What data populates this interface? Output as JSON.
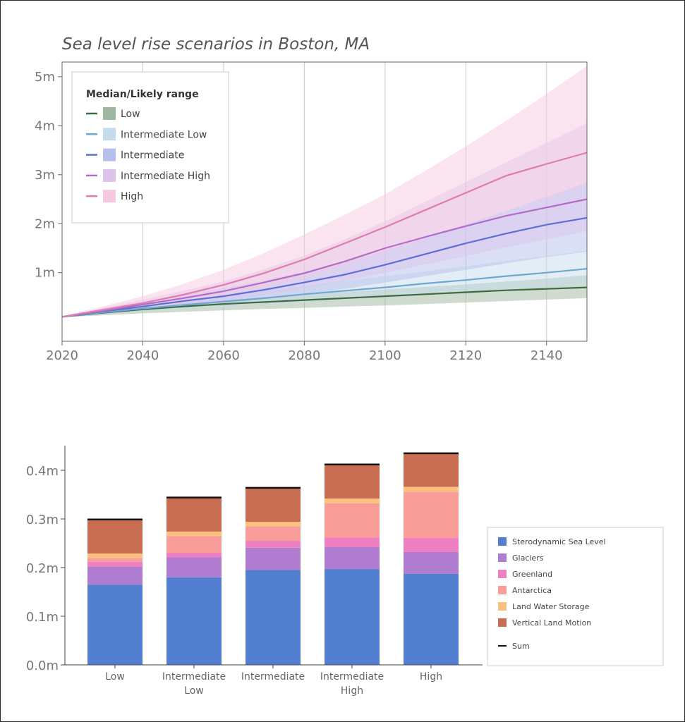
{
  "chart_data": [
    {
      "type": "line",
      "title": "Sea level rise scenarios in Boston, MA",
      "xlabel": "",
      "ylabel": "",
      "xlim": [
        2020,
        2150
      ],
      "ylim": [
        -0.4,
        5.3
      ],
      "x_ticks": [
        2020,
        2040,
        2060,
        2080,
        2100,
        2120,
        2140
      ],
      "y_ticks": [
        1,
        2,
        3,
        4,
        5
      ],
      "y_tick_labels": [
        "1m",
        "2m",
        "3m",
        "4m",
        "5m"
      ],
      "legend": {
        "title": "Median/Likely range",
        "placement": "top-left",
        "entries": [
          "Low",
          "Intermediate Low",
          "Intermediate",
          "Intermediate High",
          "High"
        ]
      },
      "x": [
        2020,
        2030,
        2040,
        2050,
        2060,
        2070,
        2080,
        2090,
        2100,
        2110,
        2120,
        2130,
        2140,
        2150
      ],
      "series": [
        {
          "name": "Low",
          "line_color": "#3d6b3f",
          "band_color": "#9fb79f",
          "median": [
            0.1,
            0.18,
            0.25,
            0.31,
            0.36,
            0.4,
            0.44,
            0.48,
            0.52,
            0.56,
            0.6,
            0.64,
            0.67,
            0.7
          ],
          "lower": [
            0.09,
            0.13,
            0.17,
            0.2,
            0.23,
            0.26,
            0.28,
            0.31,
            0.33,
            0.36,
            0.39,
            0.42,
            0.45,
            0.48
          ],
          "upper": [
            0.11,
            0.21,
            0.3,
            0.38,
            0.44,
            0.5,
            0.55,
            0.61,
            0.66,
            0.71,
            0.76,
            0.82,
            0.88,
            0.95
          ]
        },
        {
          "name": "Intermediate Low",
          "line_color": "#6fa8cf",
          "band_color": "#c5dcec",
          "median": [
            0.1,
            0.19,
            0.27,
            0.34,
            0.41,
            0.48,
            0.56,
            0.63,
            0.7,
            0.78,
            0.85,
            0.93,
            1.0,
            1.08
          ],
          "lower": [
            0.09,
            0.15,
            0.2,
            0.25,
            0.3,
            0.35,
            0.4,
            0.45,
            0.5,
            0.56,
            0.61,
            0.66,
            0.71,
            0.76
          ],
          "upper": [
            0.11,
            0.22,
            0.33,
            0.43,
            0.53,
            0.63,
            0.73,
            0.83,
            0.93,
            1.03,
            1.13,
            1.24,
            1.34,
            1.45
          ]
        },
        {
          "name": "Intermediate",
          "line_color": "#5b6fd6",
          "band_color": "#b6c0ec",
          "median": [
            0.1,
            0.21,
            0.31,
            0.42,
            0.52,
            0.65,
            0.8,
            0.96,
            1.16,
            1.38,
            1.6,
            1.8,
            1.98,
            2.12
          ],
          "lower": [
            0.09,
            0.16,
            0.23,
            0.3,
            0.37,
            0.46,
            0.56,
            0.67,
            0.8,
            0.93,
            1.06,
            1.19,
            1.32,
            1.43
          ],
          "upper": [
            0.11,
            0.26,
            0.4,
            0.54,
            0.68,
            0.84,
            1.02,
            1.22,
            1.46,
            1.72,
            1.99,
            2.26,
            2.55,
            2.84
          ]
        },
        {
          "name": "Intermediate High",
          "line_color": "#b06cc8",
          "band_color": "#dcc3ec",
          "median": [
            0.1,
            0.22,
            0.35,
            0.48,
            0.62,
            0.8,
            0.99,
            1.23,
            1.5,
            1.73,
            1.95,
            2.16,
            2.33,
            2.5
          ],
          "lower": [
            0.09,
            0.17,
            0.25,
            0.34,
            0.43,
            0.55,
            0.68,
            0.83,
            1.0,
            1.17,
            1.34,
            1.52,
            1.68,
            1.85
          ],
          "upper": [
            0.11,
            0.28,
            0.45,
            0.63,
            0.82,
            1.07,
            1.35,
            1.68,
            2.05,
            2.45,
            2.85,
            3.25,
            3.65,
            4.05
          ]
        },
        {
          "name": "High",
          "line_color": "#e07ab2",
          "band_color": "#f6c9e0",
          "median": [
            0.1,
            0.24,
            0.38,
            0.55,
            0.75,
            0.99,
            1.27,
            1.6,
            1.93,
            2.28,
            2.63,
            2.98,
            3.22,
            3.45
          ],
          "lower": [
            0.09,
            0.18,
            0.27,
            0.38,
            0.52,
            0.7,
            0.91,
            1.16,
            1.42,
            1.7,
            1.98,
            2.26,
            2.53,
            2.8
          ],
          "upper": [
            0.11,
            0.31,
            0.52,
            0.77,
            1.06,
            1.4,
            1.78,
            2.18,
            2.6,
            3.08,
            3.58,
            4.1,
            4.65,
            5.22
          ]
        }
      ]
    },
    {
      "type": "bar",
      "stacked": true,
      "title": "",
      "xlabel": "",
      "ylabel": "",
      "ylim": [
        0,
        0.44
      ],
      "y_ticks": [
        0,
        0.1,
        0.2,
        0.3,
        0.4
      ],
      "y_tick_labels": [
        "0.0m",
        "0.1m",
        "0.2m",
        "0.3m",
        "0.4m"
      ],
      "categories": [
        [
          "Low"
        ],
        [
          "Intermediate",
          "Low"
        ],
        [
          "Intermediate"
        ],
        [
          "Intermediate",
          "High"
        ],
        [
          "High"
        ]
      ],
      "legend": {
        "placement": "right"
      },
      "series": [
        {
          "name": "Sterodynamic Sea Level",
          "color": "#527fcf",
          "values": [
            0.165,
            0.18,
            0.195,
            0.197,
            0.187
          ]
        },
        {
          "name": "Glaciers",
          "color": "#b07ccf",
          "values": [
            0.037,
            0.041,
            0.046,
            0.045,
            0.045
          ]
        },
        {
          "name": "Greenland",
          "color": "#ee7fc0",
          "values": [
            0.01,
            0.01,
            0.014,
            0.02,
            0.029
          ]
        },
        {
          "name": "Antarctica",
          "color": "#f89d98",
          "values": [
            0.008,
            0.034,
            0.03,
            0.07,
            0.095
          ]
        },
        {
          "name": "Land Water Storage",
          "color": "#fbc07d",
          "values": [
            0.009,
            0.009,
            0.009,
            0.01,
            0.01
          ]
        },
        {
          "name": "Vertical Land Motion",
          "color": "#c96d52",
          "values": [
            0.07,
            0.07,
            0.07,
            0.07,
            0.069
          ]
        }
      ],
      "sum": {
        "name": "Sum",
        "color": "#111111",
        "values": [
          0.299,
          0.344,
          0.364,
          0.412,
          0.435
        ]
      }
    }
  ]
}
